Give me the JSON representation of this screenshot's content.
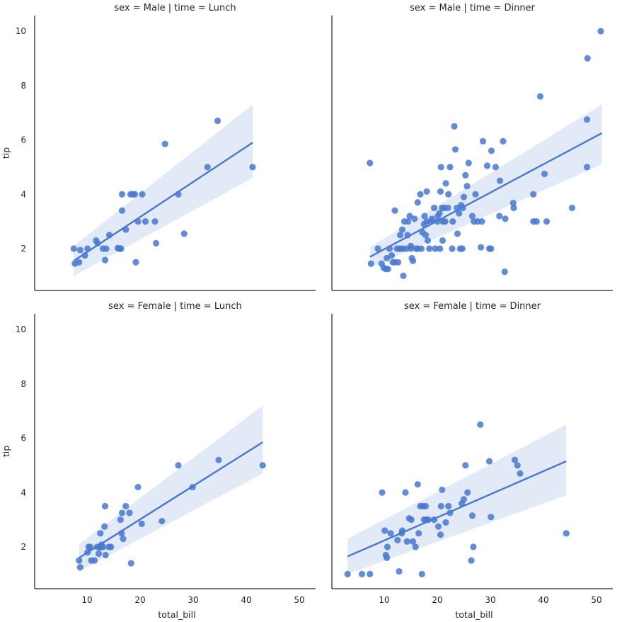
{
  "chart_data": {
    "type": "scatter",
    "layout": "facet-grid 2x2 (rows: sex, cols: time)",
    "xlabel": "total_bill",
    "ylabel": "tip",
    "xlim": [
      0.5,
      54
    ],
    "ylim": [
      0.3,
      10.5
    ],
    "xticks": [
      10,
      20,
      30,
      40,
      50
    ],
    "yticks": [
      2,
      4,
      6,
      8,
      10
    ],
    "grid": false,
    "color": "#4878cf",
    "facets": [
      {
        "title": "sex = Male | time = Lunch",
        "fit": {
          "x": [
            7.5,
            41.2
          ],
          "y": [
            1.55,
            5.9
          ],
          "ci_upper": [
            2.1,
            7.3
          ],
          "ci_lower": [
            1.0,
            4.6
          ]
        },
        "points": [
          [
            7.5,
            2.0
          ],
          [
            7.7,
            1.45
          ],
          [
            8.5,
            1.5
          ],
          [
            8.7,
            1.95
          ],
          [
            9.6,
            1.75
          ],
          [
            10.1,
            2.0
          ],
          [
            11.7,
            2.3
          ],
          [
            12.0,
            2.2
          ],
          [
            13.0,
            2.0
          ],
          [
            13.4,
            1.58
          ],
          [
            13.6,
            2.0
          ],
          [
            14.2,
            2.5
          ],
          [
            15.8,
            2.02
          ],
          [
            16.1,
            2.0
          ],
          [
            16.4,
            2.0
          ],
          [
            16.6,
            4.0
          ],
          [
            16.6,
            3.4
          ],
          [
            17.3,
            2.7
          ],
          [
            18.2,
            4.0
          ],
          [
            18.6,
            4.0
          ],
          [
            19.0,
            4.0
          ],
          [
            19.2,
            1.5
          ],
          [
            19.6,
            3.0
          ],
          [
            20.4,
            4.0
          ],
          [
            21.0,
            3.0
          ],
          [
            22.8,
            3.0
          ],
          [
            23.0,
            2.2
          ],
          [
            24.7,
            5.85
          ],
          [
            27.2,
            4.0
          ],
          [
            28.3,
            2.55
          ],
          [
            32.7,
            5.0
          ],
          [
            34.6,
            6.7
          ],
          [
            41.2,
            5.0
          ]
        ]
      },
      {
        "title": "sex = Male | time = Dinner",
        "fit": {
          "x": [
            7.3,
            51.0
          ],
          "y": [
            1.7,
            6.25
          ],
          "ci_upper": [
            2.05,
            7.3
          ],
          "ci_lower": [
            1.3,
            5.1
          ]
        },
        "points": [
          [
            7.3,
            5.15
          ],
          [
            7.5,
            1.45
          ],
          [
            8.8,
            2.0
          ],
          [
            9.5,
            1.45
          ],
          [
            9.9,
            1.3
          ],
          [
            10.3,
            1.25
          ],
          [
            10.5,
            1.65
          ],
          [
            10.7,
            1.25
          ],
          [
            11.0,
            2.0
          ],
          [
            11.4,
            1.75
          ],
          [
            11.6,
            1.5
          ],
          [
            12.0,
            1.5
          ],
          [
            12.0,
            3.4
          ],
          [
            12.4,
            2.0
          ],
          [
            12.6,
            1.5
          ],
          [
            12.9,
            2.0
          ],
          [
            13.0,
            2.5
          ],
          [
            13.4,
            2.7
          ],
          [
            13.4,
            2.0
          ],
          [
            13.6,
            1.0
          ],
          [
            13.8,
            3.0
          ],
          [
            14.1,
            2.0
          ],
          [
            14.4,
            2.5
          ],
          [
            14.5,
            3.0
          ],
          [
            14.8,
            3.2
          ],
          [
            15.0,
            2.0
          ],
          [
            15.0,
            2.1
          ],
          [
            15.2,
            1.65
          ],
          [
            15.4,
            1.55
          ],
          [
            15.7,
            3.1
          ],
          [
            16.0,
            2.0
          ],
          [
            16.3,
            2.0
          ],
          [
            16.3,
            3.7
          ],
          [
            16.8,
            4.0
          ],
          [
            17.0,
            2.0
          ],
          [
            17.2,
            2.6
          ],
          [
            17.5,
            2.9
          ],
          [
            17.6,
            3.2
          ],
          [
            17.8,
            2.5
          ],
          [
            18.0,
            4.1
          ],
          [
            18.0,
            3.0
          ],
          [
            18.2,
            2.3
          ],
          [
            18.5,
            2.0
          ],
          [
            18.8,
            3.0
          ],
          [
            19.0,
            3.1
          ],
          [
            19.4,
            3.5
          ],
          [
            19.6,
            2.0
          ],
          [
            20.0,
            3.0
          ],
          [
            20.1,
            3.2
          ],
          [
            20.4,
            3.3
          ],
          [
            20.5,
            2.0
          ],
          [
            20.6,
            4.1
          ],
          [
            20.7,
            5.0
          ],
          [
            20.9,
            3.5
          ],
          [
            21.0,
            3.0
          ],
          [
            21.0,
            2.3
          ],
          [
            21.3,
            3.5
          ],
          [
            21.5,
            3.0
          ],
          [
            21.6,
            4.4
          ],
          [
            22.0,
            3.5
          ],
          [
            22.1,
            4.0
          ],
          [
            22.4,
            5.0
          ],
          [
            22.8,
            2.0
          ],
          [
            22.9,
            3.0
          ],
          [
            23.2,
            6.5
          ],
          [
            23.4,
            5.65
          ],
          [
            23.7,
            3.5
          ],
          [
            23.8,
            2.55
          ],
          [
            24.1,
            3.3
          ],
          [
            24.3,
            2.0
          ],
          [
            24.5,
            3.6
          ],
          [
            24.7,
            2.0
          ],
          [
            24.8,
            3.5
          ],
          [
            25.0,
            3.9
          ],
          [
            25.3,
            4.7
          ],
          [
            25.6,
            4.3
          ],
          [
            25.9,
            5.15
          ],
          [
            26.6,
            3.2
          ],
          [
            26.9,
            3.0
          ],
          [
            27.2,
            4.0
          ],
          [
            27.6,
            3.0
          ],
          [
            28.2,
            2.05
          ],
          [
            28.4,
            3.0
          ],
          [
            28.6,
            5.95
          ],
          [
            29.4,
            5.05
          ],
          [
            29.8,
            2.0
          ],
          [
            30.1,
            2.0
          ],
          [
            30.2,
            5.6
          ],
          [
            31.0,
            5.0
          ],
          [
            31.7,
            3.2
          ],
          [
            31.8,
            4.5
          ],
          [
            32.4,
            5.95
          ],
          [
            32.7,
            1.15
          ],
          [
            32.8,
            3.1
          ],
          [
            34.3,
            3.68
          ],
          [
            34.4,
            3.5
          ],
          [
            38.1,
            4.0
          ],
          [
            38.1,
            3.0
          ],
          [
            38.7,
            3.0
          ],
          [
            39.4,
            7.6
          ],
          [
            40.2,
            4.75
          ],
          [
            40.6,
            3.0
          ],
          [
            45.4,
            3.5
          ],
          [
            48.2,
            5.0
          ],
          [
            48.2,
            6.75
          ],
          [
            48.3,
            9.0
          ],
          [
            50.8,
            10.0
          ]
        ]
      },
      {
        "title": "sex = Female | time = Lunch",
        "fit": {
          "x": [
            8.5,
            43.1
          ],
          "y": [
            1.6,
            5.85
          ],
          "ci_upper": [
            2.1,
            7.2
          ],
          "ci_lower": [
            1.1,
            4.7
          ]
        },
        "points": [
          [
            8.5,
            1.5
          ],
          [
            8.7,
            1.25
          ],
          [
            10.1,
            1.8
          ],
          [
            10.3,
            2.0
          ],
          [
            10.6,
            2.0
          ],
          [
            10.8,
            1.5
          ],
          [
            11.4,
            1.5
          ],
          [
            11.9,
            2.0
          ],
          [
            12.2,
            1.75
          ],
          [
            12.4,
            1.98
          ],
          [
            12.5,
            2.5
          ],
          [
            12.6,
            2.0
          ],
          [
            12.7,
            2.08
          ],
          [
            13.0,
            2.0
          ],
          [
            13.3,
            2.75
          ],
          [
            13.4,
            3.5
          ],
          [
            13.5,
            1.7
          ],
          [
            14.1,
            2.0
          ],
          [
            14.5,
            2.0
          ],
          [
            16.3,
            3.0
          ],
          [
            16.5,
            2.5
          ],
          [
            16.6,
            3.25
          ],
          [
            16.8,
            2.3
          ],
          [
            17.3,
            3.5
          ],
          [
            18.0,
            3.25
          ],
          [
            18.3,
            1.4
          ],
          [
            19.6,
            4.2
          ],
          [
            20.3,
            2.85
          ],
          [
            24.1,
            2.95
          ],
          [
            27.2,
            5.0
          ],
          [
            29.9,
            4.2
          ],
          [
            34.8,
            5.2
          ],
          [
            43.1,
            5.0
          ]
        ]
      },
      {
        "title": "sex = Female | time = Dinner",
        "fit": {
          "x": [
            3.1,
            44.3
          ],
          "y": [
            1.65,
            5.15
          ],
          "ci_upper": [
            2.3,
            6.5
          ],
          "ci_lower": [
            1.0,
            3.9
          ]
        },
        "points": [
          [
            3.1,
            1.0
          ],
          [
            5.8,
            1.0
          ],
          [
            7.3,
            1.0
          ],
          [
            9.6,
            4.0
          ],
          [
            10.1,
            2.6
          ],
          [
            10.3,
            1.7
          ],
          [
            10.5,
            1.6
          ],
          [
            10.6,
            2.0
          ],
          [
            11.2,
            2.5
          ],
          [
            12.5,
            2.25
          ],
          [
            12.8,
            1.1
          ],
          [
            13.3,
            2.5
          ],
          [
            13.4,
            2.6
          ],
          [
            14.0,
            4.0
          ],
          [
            14.3,
            2.2
          ],
          [
            14.7,
            3.05
          ],
          [
            15.1,
            3.0
          ],
          [
            15.4,
            2.2
          ],
          [
            15.9,
            2.0
          ],
          [
            16.3,
            4.3
          ],
          [
            16.5,
            2.5
          ],
          [
            16.8,
            3.5
          ],
          [
            17.1,
            1.0
          ],
          [
            17.3,
            3.5
          ],
          [
            17.5,
            3.0
          ],
          [
            17.8,
            3.5
          ],
          [
            18.0,
            3.0
          ],
          [
            18.3,
            3.0
          ],
          [
            19.4,
            3.0
          ],
          [
            20.2,
            2.75
          ],
          [
            20.6,
            2.45
          ],
          [
            20.7,
            3.5
          ],
          [
            20.9,
            4.1
          ],
          [
            21.6,
            2.9
          ],
          [
            22.1,
            3.5
          ],
          [
            22.4,
            3.25
          ],
          [
            24.6,
            3.6
          ],
          [
            25.0,
            3.75
          ],
          [
            25.3,
            5.0
          ],
          [
            25.7,
            4.0
          ],
          [
            26.4,
            1.5
          ],
          [
            26.6,
            3.15
          ],
          [
            26.8,
            2.0
          ],
          [
            28.1,
            6.5
          ],
          [
            29.8,
            5.15
          ],
          [
            30.1,
            3.1
          ],
          [
            34.6,
            5.2
          ],
          [
            35.1,
            5.0
          ],
          [
            35.6,
            4.7
          ],
          [
            44.3,
            2.5
          ]
        ]
      }
    ]
  }
}
